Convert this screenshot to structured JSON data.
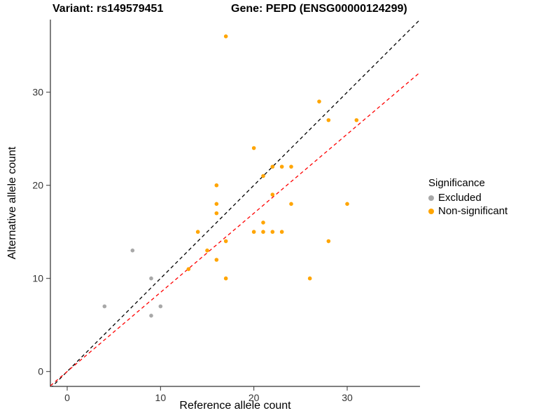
{
  "titles": {
    "left": "Variant: rs149579451",
    "right": "Gene: PEPD (ENSG00000124299)"
  },
  "axes": {
    "x_label": "Reference allele count",
    "y_label": "Alternative allele count",
    "x_ticks": [
      0,
      10,
      20,
      30
    ],
    "y_ticks": [
      0,
      10,
      20,
      30
    ],
    "x_range": [
      -1.8,
      37.8
    ],
    "y_range": [
      -1.6,
      37.8
    ]
  },
  "legend": {
    "title": "Significance",
    "items": [
      {
        "label": "Excluded",
        "color": "#a8a8a8"
      },
      {
        "label": "Non-significant",
        "color": "#ffa500"
      }
    ]
  },
  "chart_data": {
    "type": "scatter",
    "xlabel": "Reference allele count",
    "ylabel": "Alternative allele count",
    "xlim": [
      -1.8,
      37.8
    ],
    "ylim": [
      -1.6,
      37.8
    ],
    "grid": false,
    "legend_position": "right",
    "series": [
      {
        "name": "Excluded",
        "color": "#a8a8a8",
        "points": [
          [
            4,
            7
          ],
          [
            7,
            13
          ],
          [
            9,
            10
          ],
          [
            9,
            6
          ],
          [
            10,
            7
          ]
        ]
      },
      {
        "name": "Non-significant",
        "color": "#ffa500",
        "points": [
          [
            13,
            11
          ],
          [
            14,
            15
          ],
          [
            15,
            13
          ],
          [
            16,
            12
          ],
          [
            16,
            17
          ],
          [
            16,
            18
          ],
          [
            16,
            20
          ],
          [
            17,
            10
          ],
          [
            17,
            14
          ],
          [
            17,
            36
          ],
          [
            20,
            15
          ],
          [
            20,
            24
          ],
          [
            21,
            15
          ],
          [
            21,
            16
          ],
          [
            21,
            21
          ],
          [
            22,
            15
          ],
          [
            22,
            19
          ],
          [
            22,
            22
          ],
          [
            23,
            15
          ],
          [
            23,
            22
          ],
          [
            24,
            18
          ],
          [
            24,
            22
          ],
          [
            26,
            10
          ],
          [
            27,
            29
          ],
          [
            28,
            14
          ],
          [
            28,
            27
          ],
          [
            30,
            18
          ],
          [
            31,
            27
          ]
        ]
      }
    ],
    "lines": [
      {
        "name": "identity-line",
        "slope": 1.0,
        "intercept": 0,
        "color": "#000000",
        "dash": "5,4"
      },
      {
        "name": "fit-line",
        "slope": 0.85,
        "intercept": 0,
        "color": "#ff0000",
        "dash": "5,4"
      }
    ]
  }
}
